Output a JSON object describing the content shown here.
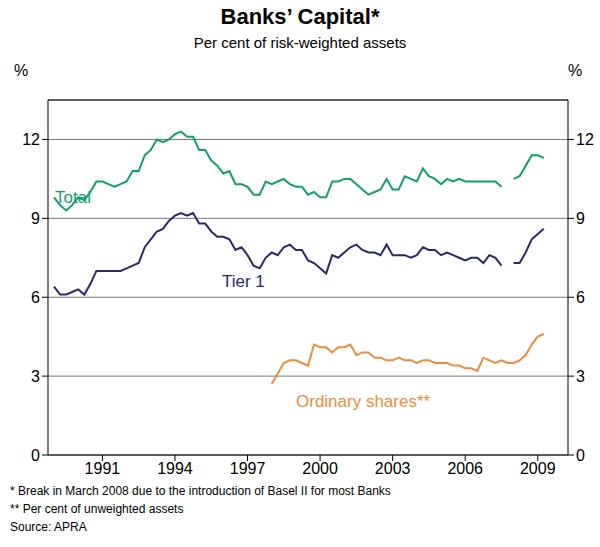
{
  "chart_data": {
    "type": "line",
    "title": "Banks’ Capital*",
    "subtitle": "Per cent of risk-weighted assets",
    "y_label": "%",
    "annotations": [
      "* Break in March 2008 due to the introduction of Basel II for most Banks",
      "** Per cent of unweighted assets",
      "Source: APRA"
    ],
    "x": [
      1989,
      1989.25,
      1989.5,
      1989.75,
      1990,
      1990.25,
      1990.5,
      1990.75,
      1991,
      1991.25,
      1991.5,
      1991.75,
      1992,
      1992.25,
      1992.5,
      1992.75,
      1993,
      1993.25,
      1993.5,
      1993.75,
      1994,
      1994.25,
      1994.5,
      1994.75,
      1995,
      1995.25,
      1995.5,
      1995.75,
      1996,
      1996.25,
      1996.5,
      1996.75,
      1997,
      1997.25,
      1997.5,
      1997.75,
      1998,
      1998.25,
      1998.5,
      1998.75,
      1999,
      1999.25,
      1999.5,
      1999.75,
      2000,
      2000.25,
      2000.5,
      2000.75,
      2001,
      2001.25,
      2001.5,
      2001.75,
      2002,
      2002.25,
      2002.5,
      2002.75,
      2003,
      2003.25,
      2003.5,
      2003.75,
      2004,
      2004.25,
      2004.5,
      2004.75,
      2005,
      2005.25,
      2005.5,
      2005.75,
      2006,
      2006.25,
      2006.5,
      2006.75,
      2007,
      2007.25,
      2007.5,
      2007.75,
      2008,
      2008.25,
      2008.5,
      2008.75,
      2009,
      2009.25
    ],
    "series": [
      {
        "name": "Total",
        "color": "#13a070",
        "values": [
          9.8,
          9.5,
          9.3,
          9.5,
          9.8,
          9.7,
          10.0,
          10.4,
          10.4,
          10.3,
          10.2,
          10.3,
          10.4,
          10.8,
          10.8,
          11.4,
          11.6,
          12.0,
          11.9,
          12.0,
          12.2,
          12.3,
          12.1,
          12.1,
          11.6,
          11.6,
          11.2,
          11.0,
          10.7,
          10.8,
          10.3,
          10.3,
          10.2,
          9.9,
          9.9,
          10.4,
          10.3,
          10.4,
          10.5,
          10.3,
          10.2,
          10.2,
          9.9,
          10.0,
          9.8,
          9.8,
          10.4,
          10.4,
          10.5,
          10.5,
          10.3,
          10.1,
          9.9,
          10.0,
          10.1,
          10.5,
          10.1,
          10.1,
          10.6,
          10.5,
          10.4,
          10.9,
          10.6,
          10.5,
          10.3,
          10.5,
          10.4,
          10.5,
          10.4,
          10.4,
          10.4,
          10.4,
          10.4,
          10.4,
          10.2,
          null,
          10.5,
          10.6,
          11.0,
          11.4,
          11.4,
          11.3
        ]
      },
      {
        "name": "Tier 1",
        "color": "#2a2a6a",
        "values": [
          6.4,
          6.1,
          6.1,
          6.2,
          6.3,
          6.1,
          6.5,
          7.0,
          7.0,
          7.0,
          7.0,
          7.0,
          7.1,
          7.2,
          7.3,
          7.9,
          8.2,
          8.5,
          8.6,
          8.9,
          9.1,
          9.2,
          9.1,
          9.2,
          8.8,
          8.8,
          8.5,
          8.3,
          8.3,
          8.2,
          7.8,
          7.9,
          7.6,
          7.2,
          7.1,
          7.5,
          7.7,
          7.6,
          7.9,
          8.0,
          7.8,
          7.8,
          7.4,
          7.3,
          7.1,
          6.9,
          7.6,
          7.5,
          7.7,
          7.9,
          8.0,
          7.8,
          7.7,
          7.7,
          7.6,
          8.0,
          7.6,
          7.6,
          7.6,
          7.5,
          7.6,
          7.9,
          7.8,
          7.8,
          7.6,
          7.7,
          7.6,
          7.5,
          7.4,
          7.5,
          7.5,
          7.3,
          7.6,
          7.5,
          7.2,
          null,
          7.3,
          7.3,
          7.7,
          8.2,
          8.4,
          8.6
        ]
      },
      {
        "name": "Ordinary shares**",
        "color": "#f08a3c",
        "values": [
          null,
          null,
          null,
          null,
          null,
          null,
          null,
          null,
          null,
          null,
          null,
          null,
          null,
          null,
          null,
          null,
          null,
          null,
          null,
          null,
          null,
          null,
          null,
          null,
          null,
          null,
          null,
          null,
          null,
          null,
          null,
          null,
          null,
          null,
          null,
          null,
          2.7,
          3.1,
          3.5,
          3.6,
          3.6,
          3.5,
          3.4,
          4.2,
          4.1,
          4.1,
          3.9,
          4.1,
          4.1,
          4.2,
          3.8,
          3.9,
          3.9,
          3.7,
          3.7,
          3.6,
          3.6,
          3.7,
          3.6,
          3.6,
          3.5,
          3.6,
          3.6,
          3.5,
          3.5,
          3.5,
          3.4,
          3.4,
          3.3,
          3.3,
          3.2,
          3.7,
          3.6,
          3.5,
          3.6,
          3.5,
          3.5,
          3.6,
          3.8,
          4.2,
          4.5,
          4.6
        ]
      }
    ],
    "xlim": [
      1988.75,
      2010.25
    ],
    "xticks": [
      1991,
      1994,
      1997,
      2000,
      2003,
      2006,
      2009
    ],
    "ylim": [
      0,
      13.5
    ],
    "yticks": [
      0,
      3,
      6,
      9,
      12
    ],
    "grid": true
  }
}
